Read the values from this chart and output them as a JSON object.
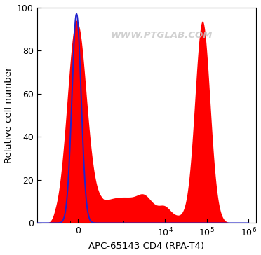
{
  "xlabel": "APC-65143 CD4 (RPA-T4)",
  "ylabel": "Relative cell number",
  "ylim": [
    0,
    100
  ],
  "yticks": [
    0,
    20,
    40,
    60,
    80,
    100
  ],
  "watermark": "WWW.PTGLAB.COM",
  "red_color": "#FF0000",
  "blue_color": "#2222CC",
  "bg_color": "#FFFFFF",
  "linthresh": 300,
  "linscale": 0.5
}
